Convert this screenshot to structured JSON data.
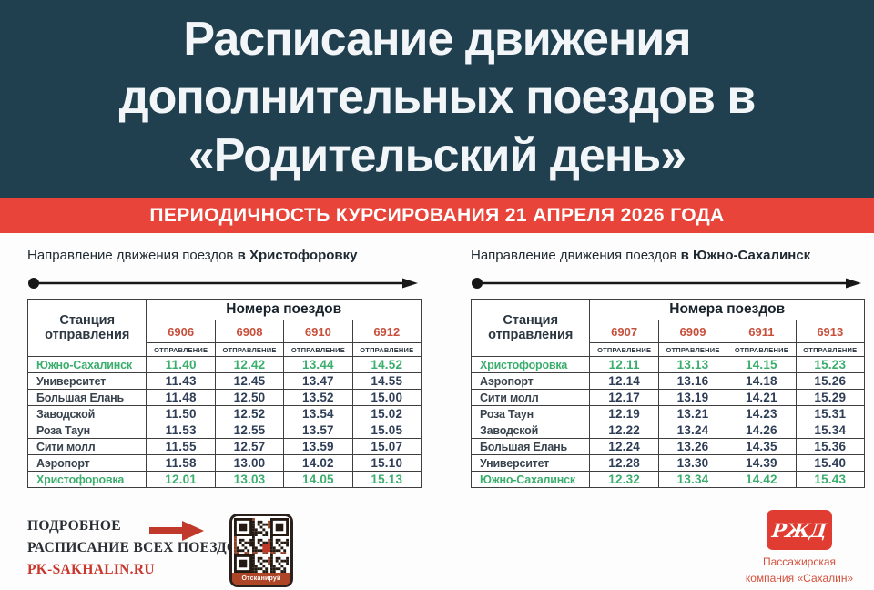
{
  "title": {
    "line1": "Расписание движения",
    "line2": "дополнительных поездов в",
    "line3": "«Родительский день»"
  },
  "banner": {
    "text": "ПЕРИОДИЧНОСТЬ КУРСИРОВАНИЯ 21 АПРЕЛЯ 2026 ГОДА"
  },
  "colors": {
    "header_bg": "#21404f",
    "banner_bg": "#e8443a",
    "highlight_green": "#3bae6d",
    "train_number_red": "#c7503c",
    "time_navy": "#2f3e57",
    "footer_red": "#c9372c",
    "logo_red": "#e03c31"
  },
  "tables": [
    {
      "direction_prefix": "Направление движения поездов",
      "direction_bold": "в Христофоровку",
      "station_header_line1": "Станция",
      "station_header_line2": "отправления",
      "trains_header": "Номера поездов",
      "departure_label": "ОТПРАВЛЕНИЕ",
      "train_numbers": [
        "6906",
        "6908",
        "6910",
        "6912"
      ],
      "rows": [
        {
          "station": "Южно-Сахалинск",
          "highlight": true,
          "times": [
            "11.40",
            "12.42",
            "13.44",
            "14.52"
          ]
        },
        {
          "station": "Университет",
          "highlight": false,
          "times": [
            "11.43",
            "12.45",
            "13.47",
            "14.55"
          ]
        },
        {
          "station": "Большая Елань",
          "highlight": false,
          "times": [
            "11.48",
            "12.50",
            "13.52",
            "15.00"
          ]
        },
        {
          "station": "Заводской",
          "highlight": false,
          "times": [
            "11.50",
            "12.52",
            "13.54",
            "15.02"
          ]
        },
        {
          "station": "Роза Таун",
          "highlight": false,
          "times": [
            "11.53",
            "12.55",
            "13.57",
            "15.05"
          ]
        },
        {
          "station": "Сити молл",
          "highlight": false,
          "times": [
            "11.55",
            "12.57",
            "13.59",
            "15.07"
          ]
        },
        {
          "station": "Аэропорт",
          "highlight": false,
          "times": [
            "11.58",
            "13.00",
            "14.02",
            "15.10"
          ]
        },
        {
          "station": "Христофоровка",
          "highlight": true,
          "times": [
            "12.01",
            "13.03",
            "14.05",
            "15.13"
          ]
        }
      ]
    },
    {
      "direction_prefix": "Направление движения поездов",
      "direction_bold": "в Южно-Сахалинск",
      "station_header_line1": "Станция",
      "station_header_line2": "отправления",
      "trains_header": "Номера поездов",
      "departure_label": "ОТПРАВЛЕНИЕ",
      "train_numbers": [
        "6907",
        "6909",
        "6911",
        "6913"
      ],
      "rows": [
        {
          "station": "Христофоровка",
          "highlight": true,
          "times": [
            "12.11",
            "13.13",
            "14.15",
            "15.23"
          ]
        },
        {
          "station": "Аэропорт",
          "highlight": false,
          "times": [
            "12.14",
            "13.16",
            "14.18",
            "15.26"
          ]
        },
        {
          "station": "Сити молл",
          "highlight": false,
          "times": [
            "12.17",
            "13.19",
            "14.21",
            "15.29"
          ]
        },
        {
          "station": "Роза Таун",
          "highlight": false,
          "times": [
            "12.19",
            "13.21",
            "14.23",
            "15.31"
          ]
        },
        {
          "station": "Заводской",
          "highlight": false,
          "times": [
            "12.22",
            "13.24",
            "14.26",
            "15.34"
          ]
        },
        {
          "station": "Большая Елань",
          "highlight": false,
          "times": [
            "12.24",
            "13.26",
            "14.35",
            "15.36"
          ]
        },
        {
          "station": "Университет",
          "highlight": false,
          "times": [
            "12.28",
            "13.30",
            "14.39",
            "15.40"
          ]
        },
        {
          "station": "Южно-Сахалинск",
          "highlight": true,
          "times": [
            "12.32",
            "13.34",
            "14.42",
            "15.43"
          ]
        }
      ]
    }
  ],
  "footer": {
    "info_line1": "ПОДРОБНОЕ",
    "info_line2": "РАСПИСАНИЕ ВСЕХ ПОЕЗДОВ",
    "site": "PK-SAKHALIN.RU",
    "qr_label": "Отсканируй",
    "logo_text": "РЖД",
    "company_line1": "Пассажирская",
    "company_line2": "компания «Сахалин»"
  }
}
